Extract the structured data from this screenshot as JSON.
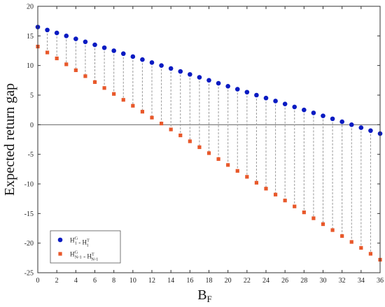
{
  "chart_data": {
    "type": "scatter",
    "xlabel": "B",
    "xlabel_sub": "F",
    "ylabel": "Expected return gap",
    "xlim": [
      0,
      36
    ],
    "ylim": [
      -25,
      20
    ],
    "x_ticks": [
      0,
      2,
      4,
      6,
      8,
      10,
      12,
      14,
      16,
      18,
      20,
      22,
      24,
      26,
      28,
      30,
      32,
      34,
      36
    ],
    "y_ticks": [
      20,
      15,
      10,
      5,
      0,
      -5,
      -10,
      -15,
      -20,
      -25
    ],
    "legend_position": "bottom-left",
    "zero_line": true,
    "dashed_connectors": true,
    "x": [
      0,
      1,
      2,
      3,
      4,
      5,
      6,
      7,
      8,
      9,
      10,
      11,
      12,
      13,
      14,
      15,
      16,
      17,
      18,
      19,
      20,
      21,
      22,
      23,
      24,
      25,
      26,
      27,
      28,
      29,
      30,
      31,
      32,
      33,
      34,
      35,
      36
    ],
    "series": [
      {
        "legend_main": "H",
        "legend_parts": [
          {
            "base": "H",
            "sup": "G",
            "sub": "1"
          },
          {
            "op": " - "
          },
          {
            "base": "H",
            "sup": "T",
            "sub": "1"
          }
        ],
        "color": "#0a1bc2",
        "marker": "circle",
        "values": [
          16.5,
          16.0,
          15.5,
          15.0,
          14.5,
          14.0,
          13.5,
          13.0,
          12.5,
          12.0,
          11.5,
          11.0,
          10.5,
          10.0,
          9.5,
          9.0,
          8.5,
          8.0,
          7.5,
          7.0,
          6.5,
          6.0,
          5.5,
          5.0,
          4.5,
          4.0,
          3.5,
          3.0,
          2.5,
          2.0,
          1.5,
          1.0,
          0.5,
          0.0,
          -0.5,
          -1.0,
          -1.5
        ]
      },
      {
        "legend_parts": [
          {
            "base": "H",
            "sup": "G",
            "sub": "N-1"
          },
          {
            "op": " - "
          },
          {
            "base": "H",
            "sup": "T",
            "sub": "N-1"
          }
        ],
        "color": "#e8582a",
        "marker": "square",
        "values": [
          13.2,
          12.2,
          11.2,
          10.2,
          9.2,
          8.2,
          7.2,
          6.2,
          5.2,
          4.2,
          3.2,
          2.2,
          1.2,
          0.2,
          -0.8,
          -1.8,
          -2.8,
          -3.8,
          -4.8,
          -5.8,
          -6.8,
          -7.8,
          -8.8,
          -9.8,
          -10.8,
          -11.8,
          -12.8,
          -13.8,
          -14.8,
          -15.8,
          -16.8,
          -17.8,
          -18.8,
          -19.8,
          -20.8,
          -21.8,
          -22.8
        ]
      }
    ]
  }
}
